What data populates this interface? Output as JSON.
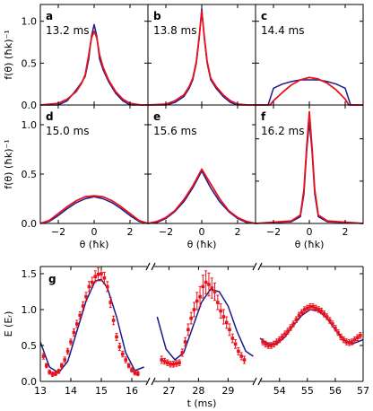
{
  "colors": {
    "theory": "#1a1a8c",
    "experiment": "#e8121c",
    "axis": "#000000"
  },
  "chart_data": [
    {
      "type": "line",
      "panel": "a",
      "time_label": "13.2 ms",
      "xlabel": "θ (ħk)",
      "ylabel": "f(θ) (ħk)⁻¹",
      "xlim": [
        -3,
        3
      ],
      "ylim": [
        0,
        1.2
      ],
      "xticks": [
        "−2",
        "0",
        "2"
      ],
      "yticks": [
        "0.0",
        "0.5",
        "1.0"
      ],
      "series": [
        {
          "x": [
            -3.0,
            -2.0,
            -1.5,
            -1.0,
            -0.7,
            -0.5,
            -0.3,
            -0.15,
            0.0,
            0.15,
            0.3,
            0.5,
            0.8,
            1.2,
            1.6,
            2.0,
            2.6,
            3.0
          ],
          "y": [
            0.0,
            0.0,
            0.05,
            0.18,
            0.27,
            0.34,
            0.55,
            0.82,
            0.96,
            0.82,
            0.55,
            0.42,
            0.28,
            0.14,
            0.05,
            0.0,
            0.0,
            0.0
          ]
        },
        {
          "x": [
            -3.0,
            -2.0,
            -1.5,
            -1.0,
            -0.7,
            -0.5,
            -0.3,
            -0.15,
            0.0,
            0.15,
            0.3,
            0.5,
            0.8,
            1.2,
            1.6,
            2.0,
            2.6,
            3.0
          ],
          "y": [
            0.0,
            0.02,
            0.07,
            0.16,
            0.26,
            0.36,
            0.6,
            0.8,
            0.88,
            0.8,
            0.6,
            0.45,
            0.3,
            0.16,
            0.07,
            0.02,
            0.0,
            0.0
          ]
        }
      ]
    },
    {
      "type": "line",
      "panel": "b",
      "time_label": "13.8 ms",
      "xlabel": "θ (ħk)",
      "xlim": [
        -3,
        3
      ],
      "ylim": [
        0,
        1.2
      ],
      "xticks": [
        "−2",
        "0",
        "2"
      ],
      "series": [
        {
          "x": [
            -3.0,
            -2.0,
            -1.5,
            -1.0,
            -0.7,
            -0.5,
            -0.3,
            -0.15,
            0.0,
            0.15,
            0.3,
            0.5,
            0.8,
            1.2,
            1.6,
            2.0,
            2.6,
            3.0
          ],
          "y": [
            0.0,
            0.0,
            0.03,
            0.1,
            0.2,
            0.3,
            0.5,
            0.78,
            1.15,
            0.78,
            0.5,
            0.3,
            0.2,
            0.1,
            0.03,
            0.0,
            0.0,
            0.0
          ]
        },
        {
          "x": [
            -3.0,
            -2.0,
            -1.5,
            -1.0,
            -0.7,
            -0.5,
            -0.3,
            -0.15,
            0.0,
            0.15,
            0.3,
            0.5,
            0.8,
            1.2,
            1.6,
            2.0,
            2.6,
            3.0
          ],
          "y": [
            0.0,
            0.01,
            0.05,
            0.12,
            0.22,
            0.32,
            0.52,
            0.8,
            1.12,
            0.8,
            0.52,
            0.32,
            0.22,
            0.12,
            0.05,
            0.01,
            0.0,
            0.0
          ]
        }
      ]
    },
    {
      "type": "line",
      "panel": "c",
      "time_label": "14.4 ms",
      "xlabel": "θ (ħk)",
      "xlim": [
        -3,
        3
      ],
      "ylim": [
        0,
        1.2
      ],
      "xticks": [
        "−2",
        "0",
        "2"
      ],
      "series": [
        {
          "x": [
            -3.0,
            -2.3,
            -2.0,
            -1.5,
            -1.0,
            -0.5,
            0.0,
            0.5,
            1.0,
            1.5,
            2.0,
            2.3,
            3.0
          ],
          "y": [
            0.0,
            0.0,
            0.2,
            0.25,
            0.28,
            0.3,
            0.3,
            0.3,
            0.28,
            0.25,
            0.2,
            0.0,
            0.0
          ]
        },
        {
          "x": [
            -3.0,
            -2.2,
            -2.0,
            -1.5,
            -1.0,
            -0.5,
            0.0,
            0.5,
            1.0,
            1.5,
            2.0,
            2.2,
            3.0
          ],
          "y": [
            0.0,
            0.0,
            0.05,
            0.15,
            0.24,
            0.3,
            0.33,
            0.31,
            0.26,
            0.18,
            0.07,
            0.0,
            0.0
          ]
        }
      ]
    },
    {
      "type": "line",
      "panel": "d",
      "time_label": "15.0 ms",
      "xlabel": "θ (ħk)",
      "ylabel": "f(θ) (ħk)⁻¹",
      "xlim": [
        -3,
        3
      ],
      "ylim": [
        0,
        1.2
      ],
      "xticks": [
        "−2",
        "0",
        "2"
      ],
      "yticks": [
        "0.0",
        "0.5",
        "1.0"
      ],
      "series": [
        {
          "x": [
            -3.0,
            -2.5,
            -2.0,
            -1.5,
            -1.0,
            -0.5,
            0.0,
            0.5,
            1.0,
            1.5,
            2.0,
            2.5,
            3.0
          ],
          "y": [
            0.0,
            0.02,
            0.08,
            0.15,
            0.21,
            0.25,
            0.27,
            0.25,
            0.21,
            0.15,
            0.08,
            0.02,
            0.0
          ]
        },
        {
          "x": [
            -3.0,
            -2.5,
            -2.0,
            -1.5,
            -1.0,
            -0.5,
            0.0,
            0.5,
            1.0,
            1.5,
            2.0,
            2.5,
            3.0
          ],
          "y": [
            0.0,
            0.03,
            0.1,
            0.17,
            0.23,
            0.27,
            0.28,
            0.27,
            0.23,
            0.17,
            0.1,
            0.03,
            0.0
          ]
        }
      ]
    },
    {
      "type": "line",
      "panel": "e",
      "time_label": "15.6 ms",
      "xlabel": "θ (ħk)",
      "xlim": [
        -3,
        3
      ],
      "ylim": [
        0,
        1.2
      ],
      "xticks": [
        "−2",
        "0",
        "2"
      ],
      "series": [
        {
          "x": [
            -3.0,
            -2.5,
            -2.0,
            -1.5,
            -1.0,
            -0.5,
            0.0,
            0.5,
            1.0,
            1.5,
            2.0,
            2.5,
            3.0
          ],
          "y": [
            0.0,
            0.01,
            0.05,
            0.12,
            0.22,
            0.36,
            0.53,
            0.36,
            0.22,
            0.12,
            0.05,
            0.01,
            0.0
          ]
        },
        {
          "x": [
            -3.0,
            -2.5,
            -2.0,
            -1.5,
            -1.0,
            -0.5,
            0.0,
            0.5,
            1.0,
            1.5,
            2.0,
            2.5,
            3.0
          ],
          "y": [
            0.0,
            0.02,
            0.06,
            0.13,
            0.24,
            0.38,
            0.55,
            0.4,
            0.25,
            0.13,
            0.06,
            0.02,
            0.0
          ]
        }
      ]
    },
    {
      "type": "line",
      "panel": "f",
      "time_label": "16.2 ms",
      "xlabel": "θ (ħk)",
      "xlim": [
        -3,
        3
      ],
      "ylim": [
        0,
        1.4
      ],
      "xticks": [
        "−2",
        "0",
        "2"
      ],
      "series": [
        {
          "x": [
            -3.0,
            -1.0,
            -0.5,
            -0.3,
            -0.15,
            0.0,
            0.15,
            0.3,
            0.5,
            1.0,
            3.0
          ],
          "y": [
            0.0,
            0.02,
            0.08,
            0.35,
            0.85,
            1.2,
            0.85,
            0.35,
            0.08,
            0.02,
            0.0
          ]
        },
        {
          "x": [
            -3.0,
            -1.0,
            -0.5,
            -0.3,
            -0.15,
            0.0,
            0.15,
            0.3,
            0.5,
            1.0,
            3.0
          ],
          "y": [
            0.0,
            0.03,
            0.1,
            0.4,
            0.9,
            1.32,
            0.9,
            0.4,
            0.1,
            0.03,
            0.0
          ]
        }
      ]
    },
    {
      "type": "scatter",
      "panel": "g",
      "ylabel": "E (Eᵣ)",
      "xlabel": "t (ms)",
      "ylim": [
        0,
        1.6
      ],
      "yticks": [
        "0.0",
        "0.5",
        "1.0",
        "1.5"
      ],
      "segments": [
        {
          "xlim": [
            13,
            16.5
          ],
          "xticks": [
            "13",
            "14",
            "15",
            "16"
          ],
          "theory": {
            "x": [
              13.0,
              13.3,
              13.6,
              13.9,
              14.2,
              14.5,
              14.8,
              15.0,
              15.2,
              15.5,
              15.8,
              16.1,
              16.4
            ],
            "y": [
              0.55,
              0.2,
              0.12,
              0.28,
              0.7,
              1.12,
              1.4,
              1.42,
              1.3,
              0.9,
              0.4,
              0.15,
              0.2
            ]
          },
          "data": {
            "x": [
              13.1,
              13.2,
              13.3,
              13.4,
              13.5,
              13.6,
              13.7,
              13.8,
              13.9,
              14.0,
              14.1,
              14.2,
              14.3,
              14.4,
              14.5,
              14.6,
              14.7,
              14.8,
              14.9,
              15.0,
              15.1,
              15.2,
              15.3,
              15.4,
              15.5,
              15.6,
              15.7,
              15.8,
              15.9,
              16.0,
              16.1,
              16.2
            ],
            "y": [
              0.35,
              0.22,
              0.13,
              0.1,
              0.11,
              0.14,
              0.22,
              0.3,
              0.42,
              0.55,
              0.68,
              0.8,
              0.92,
              1.05,
              1.18,
              1.32,
              1.38,
              1.46,
              1.49,
              1.5,
              1.44,
              1.32,
              1.1,
              0.85,
              0.62,
              0.48,
              0.38,
              0.3,
              0.22,
              0.16,
              0.12,
              0.11
            ],
            "err": [
              0.04,
              0.03,
              0.03,
              0.03,
              0.03,
              0.03,
              0.03,
              0.04,
              0.04,
              0.04,
              0.05,
              0.05,
              0.05,
              0.06,
              0.06,
              0.07,
              0.07,
              0.08,
              0.09,
              0.1,
              0.08,
              0.07,
              0.07,
              0.06,
              0.05,
              0.05,
              0.04,
              0.04,
              0.03,
              0.03,
              0.03,
              0.03
            ]
          }
        },
        {
          "xlim": [
            26.5,
            29.9
          ],
          "xticks": [
            "27",
            "28",
            "29"
          ],
          "theory": {
            "x": [
              26.6,
              26.9,
              27.2,
              27.5,
              27.8,
              28.1,
              28.4,
              28.7,
              29.0,
              29.3,
              29.6,
              29.85
            ],
            "y": [
              0.9,
              0.45,
              0.3,
              0.4,
              0.75,
              1.1,
              1.28,
              1.25,
              1.05,
              0.7,
              0.42,
              0.35
            ]
          },
          "data": {
            "x": [
              26.75,
              26.85,
              26.95,
              27.05,
              27.15,
              27.25,
              27.35,
              27.45,
              27.55,
              27.65,
              27.75,
              27.85,
              27.95,
              28.05,
              28.15,
              28.25,
              28.35,
              28.45,
              28.55,
              28.65,
              28.75,
              28.85,
              28.95,
              29.05,
              29.15,
              29.25,
              29.35,
              29.45,
              29.55
            ],
            "y": [
              0.3,
              0.28,
              0.26,
              0.24,
              0.24,
              0.25,
              0.26,
              0.4,
              0.55,
              0.72,
              0.88,
              1.0,
              1.12,
              1.18,
              1.32,
              1.38,
              1.35,
              1.3,
              1.25,
              1.1,
              0.98,
              0.9,
              0.82,
              0.72,
              0.6,
              0.52,
              0.42,
              0.35,
              0.3
            ],
            "err": [
              0.05,
              0.04,
              0.04,
              0.04,
              0.04,
              0.04,
              0.04,
              0.05,
              0.06,
              0.08,
              0.08,
              0.1,
              0.12,
              0.14,
              0.16,
              0.16,
              0.16,
              0.14,
              0.12,
              0.1,
              0.1,
              0.1,
              0.08,
              0.08,
              0.06,
              0.06,
              0.05,
              0.05,
              0.05
            ]
          }
        },
        {
          "xlim": [
            53.3,
            57
          ],
          "xticks": [
            "54",
            "55",
            "56",
            "57"
          ],
          "theory": {
            "x": [
              53.3,
              53.6,
              53.9,
              54.2,
              54.5,
              54.8,
              55.1,
              55.4,
              55.7,
              56.0,
              56.3,
              56.6,
              57.0
            ],
            "y": [
              0.6,
              0.52,
              0.52,
              0.62,
              0.78,
              0.92,
              1.0,
              0.98,
              0.88,
              0.72,
              0.58,
              0.52,
              0.58
            ]
          },
          "data": {
            "x": [
              53.4,
              53.5,
              53.6,
              53.7,
              53.8,
              53.9,
              54.0,
              54.1,
              54.2,
              54.3,
              54.4,
              54.5,
              54.6,
              54.7,
              54.8,
              54.9,
              55.0,
              55.1,
              55.2,
              55.3,
              55.4,
              55.5,
              55.6,
              55.7,
              55.8,
              55.9,
              56.0,
              56.1,
              56.2,
              56.3,
              56.4,
              56.5,
              56.6,
              56.7,
              56.8,
              56.9
            ],
            "y": [
              0.55,
              0.52,
              0.5,
              0.5,
              0.52,
              0.55,
              0.58,
              0.62,
              0.66,
              0.7,
              0.75,
              0.8,
              0.86,
              0.92,
              0.96,
              1.0,
              1.02,
              1.04,
              1.04,
              1.02,
              1.0,
              0.98,
              0.94,
              0.9,
              0.85,
              0.8,
              0.74,
              0.68,
              0.62,
              0.58,
              0.55,
              0.54,
              0.55,
              0.58,
              0.61,
              0.64
            ],
            "err": [
              0.04,
              0.04,
              0.04,
              0.04,
              0.04,
              0.04,
              0.04,
              0.04,
              0.04,
              0.04,
              0.04,
              0.04,
              0.04,
              0.04,
              0.04,
              0.04,
              0.04,
              0.04,
              0.04,
              0.04,
              0.04,
              0.04,
              0.04,
              0.04,
              0.04,
              0.04,
              0.04,
              0.04,
              0.04,
              0.04,
              0.04,
              0.04,
              0.04,
              0.04,
              0.04,
              0.04
            ]
          }
        }
      ]
    }
  ]
}
